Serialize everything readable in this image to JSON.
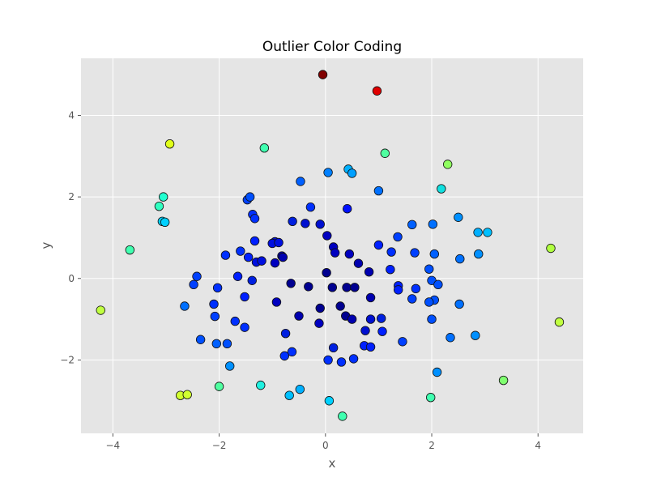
{
  "chart_data": {
    "type": "scatter",
    "title": "Outlier Color Coding",
    "xlabel": "x",
    "ylabel": "y",
    "xlim": [
      -4.6,
      4.85
    ],
    "ylim": [
      -3.8,
      5.4
    ],
    "xticks": [
      -4,
      -2,
      0,
      2,
      4
    ],
    "yticks": [
      -2,
      0,
      2,
      4
    ],
    "grid": true,
    "background": "#e5e5e5",
    "grid_color": "#ffffff",
    "colormap": "jet",
    "color_basis": "distance from origin",
    "points": [
      {
        "x": -0.05,
        "y": 5.0,
        "c": "#800000"
      },
      {
        "x": 0.97,
        "y": 4.6,
        "c": "#e00000"
      },
      {
        "x": -2.93,
        "y": 3.3,
        "c": "#e0ff1a"
      },
      {
        "x": -1.15,
        "y": 3.2,
        "c": "#40ffb0"
      },
      {
        "x": 1.12,
        "y": 3.07,
        "c": "#50ffa0"
      },
      {
        "x": 2.3,
        "y": 2.8,
        "c": "#90ff60"
      },
      {
        "x": 0.05,
        "y": 2.6,
        "c": "#0080ff"
      },
      {
        "x": 0.43,
        "y": 2.68,
        "c": "#00b0ff"
      },
      {
        "x": 0.5,
        "y": 2.58,
        "c": "#00a0ff"
      },
      {
        "x": -0.47,
        "y": 2.38,
        "c": "#0060ff"
      },
      {
        "x": 1.0,
        "y": 2.15,
        "c": "#0070ff"
      },
      {
        "x": 2.18,
        "y": 2.2,
        "c": "#10e0e0"
      },
      {
        "x": -3.05,
        "y": 2.0,
        "c": "#20ffd0"
      },
      {
        "x": -3.13,
        "y": 1.77,
        "c": "#30ffc0"
      },
      {
        "x": -1.47,
        "y": 1.93,
        "c": "#0040ff"
      },
      {
        "x": -1.42,
        "y": 2.0,
        "c": "#0050ff"
      },
      {
        "x": -0.28,
        "y": 1.75,
        "c": "#0030ff"
      },
      {
        "x": 0.41,
        "y": 1.71,
        "c": "#0010ff"
      },
      {
        "x": -1.37,
        "y": 1.57,
        "c": "#0030ff"
      },
      {
        "x": -1.33,
        "y": 1.47,
        "c": "#0030ff"
      },
      {
        "x": -3.07,
        "y": 1.4,
        "c": "#00d0ff"
      },
      {
        "x": -3.02,
        "y": 1.38,
        "c": "#00d0ff"
      },
      {
        "x": -0.62,
        "y": 1.4,
        "c": "#0020e0"
      },
      {
        "x": -0.38,
        "y": 1.35,
        "c": "#0010d0"
      },
      {
        "x": -0.1,
        "y": 1.33,
        "c": "#0010d0"
      },
      {
        "x": 1.63,
        "y": 1.32,
        "c": "#0060ff"
      },
      {
        "x": 2.02,
        "y": 1.33,
        "c": "#0070ff"
      },
      {
        "x": 2.5,
        "y": 1.5,
        "c": "#0090ff"
      },
      {
        "x": -3.68,
        "y": 0.7,
        "c": "#40ffb0"
      },
      {
        "x": 2.87,
        "y": 1.13,
        "c": "#00b0ff"
      },
      {
        "x": 3.05,
        "y": 1.13,
        "c": "#00c0ff"
      },
      {
        "x": 4.24,
        "y": 0.74,
        "c": "#b0ff40"
      },
      {
        "x": 0.03,
        "y": 1.05,
        "c": "#0000c0"
      },
      {
        "x": 1.36,
        "y": 1.02,
        "c": "#0040ff"
      },
      {
        "x": 0.15,
        "y": 0.77,
        "c": "#0000c0"
      },
      {
        "x": 0.18,
        "y": 0.63,
        "c": "#0000c0"
      },
      {
        "x": 1.0,
        "y": 0.82,
        "c": "#0020ff"
      },
      {
        "x": 1.24,
        "y": 0.65,
        "c": "#0030ff"
      },
      {
        "x": 1.68,
        "y": 0.63,
        "c": "#0040ff"
      },
      {
        "x": 2.05,
        "y": 0.6,
        "c": "#0060ff"
      },
      {
        "x": 2.88,
        "y": 0.6,
        "c": "#0090ff"
      },
      {
        "x": 2.53,
        "y": 0.48,
        "c": "#0070ff"
      },
      {
        "x": 1.95,
        "y": 0.23,
        "c": "#0050ff"
      },
      {
        "x": -1.33,
        "y": 0.92,
        "c": "#0020ff"
      },
      {
        "x": -0.95,
        "y": 0.9,
        "c": "#0010e0"
      },
      {
        "x": -1.0,
        "y": 0.86,
        "c": "#0010e0"
      },
      {
        "x": -0.88,
        "y": 0.88,
        "c": "#0010e0"
      },
      {
        "x": -1.6,
        "y": 0.67,
        "c": "#0030ff"
      },
      {
        "x": -1.88,
        "y": 0.57,
        "c": "#0030ff"
      },
      {
        "x": -1.45,
        "y": 0.52,
        "c": "#0020ff"
      },
      {
        "x": -1.3,
        "y": 0.4,
        "c": "#0010e0"
      },
      {
        "x": -1.2,
        "y": 0.43,
        "c": "#0010e0"
      },
      {
        "x": -0.82,
        "y": 0.55,
        "c": "#0000c0"
      },
      {
        "x": -0.8,
        "y": 0.52,
        "c": "#0000b0"
      },
      {
        "x": -0.95,
        "y": 0.38,
        "c": "#0000c0"
      },
      {
        "x": 0.45,
        "y": 0.6,
        "c": "#0000c0"
      },
      {
        "x": 0.62,
        "y": 0.37,
        "c": "#0000b0"
      },
      {
        "x": 0.82,
        "y": 0.16,
        "c": "#0000b0"
      },
      {
        "x": 1.22,
        "y": 0.22,
        "c": "#0020ff"
      },
      {
        "x": 0.02,
        "y": 0.14,
        "c": "#000090"
      },
      {
        "x": -2.42,
        "y": 0.05,
        "c": "#0040ff"
      },
      {
        "x": -2.48,
        "y": -0.15,
        "c": "#0040ff"
      },
      {
        "x": -1.65,
        "y": 0.05,
        "c": "#0020ff"
      },
      {
        "x": -1.38,
        "y": -0.05,
        "c": "#0020e0"
      },
      {
        "x": -2.03,
        "y": -0.23,
        "c": "#0030ff"
      },
      {
        "x": -0.65,
        "y": -0.12,
        "c": "#000090"
      },
      {
        "x": -0.32,
        "y": -0.2,
        "c": "#000090"
      },
      {
        "x": 0.13,
        "y": -0.22,
        "c": "#000090"
      },
      {
        "x": 0.4,
        "y": -0.22,
        "c": "#000090"
      },
      {
        "x": 0.55,
        "y": -0.22,
        "c": "#000090"
      },
      {
        "x": 1.37,
        "y": -0.18,
        "c": "#0020ff"
      },
      {
        "x": 1.37,
        "y": -0.28,
        "c": "#0020ff"
      },
      {
        "x": 1.7,
        "y": -0.25,
        "c": "#0030ff"
      },
      {
        "x": 2.0,
        "y": -0.05,
        "c": "#0050ff"
      },
      {
        "x": 2.12,
        "y": -0.15,
        "c": "#0050ff"
      },
      {
        "x": 2.05,
        "y": -0.53,
        "c": "#0050ff"
      },
      {
        "x": 1.95,
        "y": -0.58,
        "c": "#0050ff"
      },
      {
        "x": 1.63,
        "y": -0.5,
        "c": "#0040ff"
      },
      {
        "x": 2.52,
        "y": -0.63,
        "c": "#0070ff"
      },
      {
        "x": 0.85,
        "y": -0.47,
        "c": "#0000b0"
      },
      {
        "x": -1.52,
        "y": -0.45,
        "c": "#0020ff"
      },
      {
        "x": -2.1,
        "y": -0.63,
        "c": "#0030ff"
      },
      {
        "x": -2.65,
        "y": -0.68,
        "c": "#0070ff"
      },
      {
        "x": -0.92,
        "y": -0.58,
        "c": "#0000c0"
      },
      {
        "x": -0.1,
        "y": -0.73,
        "c": "#000090"
      },
      {
        "x": 0.28,
        "y": -0.68,
        "c": "#000090"
      },
      {
        "x": -2.08,
        "y": -0.93,
        "c": "#0040ff"
      },
      {
        "x": -0.5,
        "y": -0.92,
        "c": "#0000b0"
      },
      {
        "x": 0.38,
        "y": -0.92,
        "c": "#000090"
      },
      {
        "x": 0.5,
        "y": -1.0,
        "c": "#0000b0"
      },
      {
        "x": 0.85,
        "y": -1.0,
        "c": "#0010d0"
      },
      {
        "x": 1.05,
        "y": -0.98,
        "c": "#0020e0"
      },
      {
        "x": 2.0,
        "y": -1.0,
        "c": "#0050ff"
      },
      {
        "x": -1.7,
        "y": -1.05,
        "c": "#0030ff"
      },
      {
        "x": -1.52,
        "y": -1.2,
        "c": "#0030ff"
      },
      {
        "x": -0.12,
        "y": -1.1,
        "c": "#0000c0"
      },
      {
        "x": 0.75,
        "y": -1.28,
        "c": "#0010d0"
      },
      {
        "x": 1.07,
        "y": -1.3,
        "c": "#0020ff"
      },
      {
        "x": -0.75,
        "y": -1.35,
        "c": "#0020e0"
      },
      {
        "x": -2.35,
        "y": -1.5,
        "c": "#0050ff"
      },
      {
        "x": 1.45,
        "y": -1.55,
        "c": "#0040ff"
      },
      {
        "x": 2.35,
        "y": -1.45,
        "c": "#0070ff"
      },
      {
        "x": 2.82,
        "y": -1.4,
        "c": "#0090ff"
      },
      {
        "x": -2.05,
        "y": -1.6,
        "c": "#0060ff"
      },
      {
        "x": -1.85,
        "y": -1.6,
        "c": "#0050ff"
      },
      {
        "x": 0.73,
        "y": -1.65,
        "c": "#0020ff"
      },
      {
        "x": 0.85,
        "y": -1.68,
        "c": "#0020ff"
      },
      {
        "x": 0.15,
        "y": -1.7,
        "c": "#0020e0"
      },
      {
        "x": -0.63,
        "y": -1.8,
        "c": "#0030ff"
      },
      {
        "x": -0.77,
        "y": -1.9,
        "c": "#0030ff"
      },
      {
        "x": 0.05,
        "y": -2.0,
        "c": "#0030ff"
      },
      {
        "x": 0.3,
        "y": -2.05,
        "c": "#0030ff"
      },
      {
        "x": 0.53,
        "y": -1.97,
        "c": "#0030ff"
      },
      {
        "x": -1.8,
        "y": -2.15,
        "c": "#0090ff"
      },
      {
        "x": 2.1,
        "y": -2.3,
        "c": "#0090ff"
      },
      {
        "x": -2.0,
        "y": -2.65,
        "c": "#50ffa0"
      },
      {
        "x": -1.22,
        "y": -2.62,
        "c": "#20f0e0"
      },
      {
        "x": -0.48,
        "y": -2.72,
        "c": "#00b0ff"
      },
      {
        "x": -0.68,
        "y": -2.87,
        "c": "#00c0ff"
      },
      {
        "x": -4.23,
        "y": -0.78,
        "c": "#c0ff40"
      },
      {
        "x": 4.4,
        "y": -1.07,
        "c": "#c0ff40"
      },
      {
        "x": 3.35,
        "y": -2.5,
        "c": "#80ff70"
      },
      {
        "x": -2.73,
        "y": -2.87,
        "c": "#d0ff30"
      },
      {
        "x": -2.6,
        "y": -2.85,
        "c": "#d0ff30"
      },
      {
        "x": 1.98,
        "y": -2.92,
        "c": "#40ffb0"
      },
      {
        "x": 0.07,
        "y": -3.0,
        "c": "#00d0ff"
      },
      {
        "x": 0.32,
        "y": -3.38,
        "c": "#40ffb0"
      }
    ]
  }
}
